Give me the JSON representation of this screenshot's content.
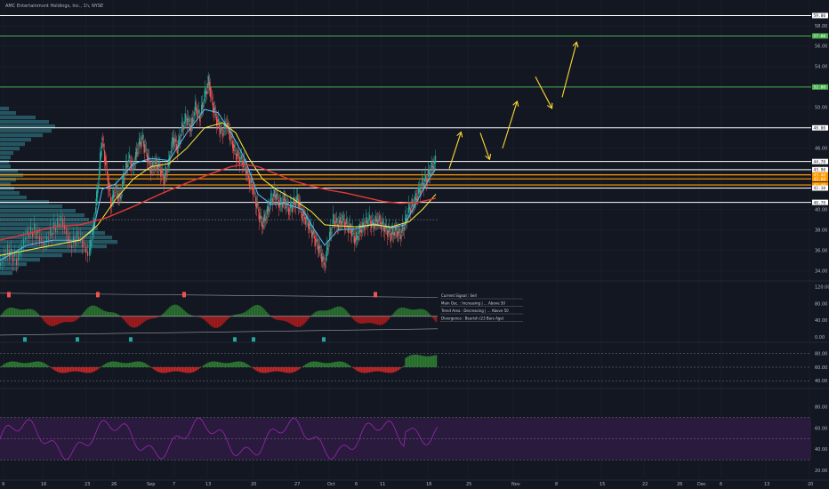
{
  "title": "AMC Entertainment Holdings, Inc., 1h, NYSE",
  "colors": {
    "background": "#131722",
    "grid": "#1e222d",
    "up_candle": "#26a69a",
    "down_candle": "#ef5350",
    "ema_fast": "#4fc3f7",
    "ema_mid": "#ffeb3b",
    "ema_slow": "#e53935",
    "level_white": "#ffffff",
    "level_green": "#4caf50",
    "level_orange": "#ff9800",
    "arrow": "#fdd835",
    "rsi_line": "#9c27b0",
    "rsi_band": "#2a1a3e",
    "volume_profile": "#2d6b78"
  },
  "price_axis": {
    "ticks": [
      "58.00",
      "56.00",
      "54.00",
      "52.00",
      "50.00",
      "48.00",
      "46.00",
      "44.00",
      "42.00",
      "40.00",
      "38.00",
      "36.00",
      "34.00"
    ],
    "level_labels": [
      {
        "text": "59.00",
        "price": 59.0,
        "color": "#ffffff"
      },
      {
        "text": "57.00",
        "price": 57.0,
        "color": "#4caf50"
      },
      {
        "text": "52.00",
        "price": 52.0,
        "color": "#4caf50"
      },
      {
        "text": "48.00",
        "price": 48.0,
        "color": "#ffffff"
      },
      {
        "text": "44.70",
        "price": 44.7,
        "color": "#ffffff"
      },
      {
        "text": "43.90",
        "price": 43.9,
        "color": "#ffffff"
      },
      {
        "text": "43.40",
        "price": 43.4,
        "color": "#ff9800"
      },
      {
        "text": "43.00",
        "price": 43.0,
        "color": "#ff9800"
      },
      {
        "text": "42.40",
        "price": 42.4,
        "color": "#ff9800"
      },
      {
        "text": "42.10",
        "price": 42.1,
        "color": "#ffffff"
      },
      {
        "text": "40.70",
        "price": 40.7,
        "color": "#ffffff"
      }
    ]
  },
  "x_axis": {
    "ticks": [
      "9",
      "16",
      "23",
      "26",
      "Sep",
      "7",
      "13",
      "20",
      "27",
      "Oct",
      "6",
      "11",
      "18",
      "25",
      "Nov",
      "8",
      "15",
      "22",
      "26",
      "Dec",
      "6",
      "13",
      "20"
    ]
  },
  "oscillator_axis": {
    "ticks": [
      "120.00",
      "80.00",
      "40.00",
      "0.00"
    ]
  },
  "momentum_axis": {
    "ticks": [
      "80.00",
      "60.00",
      "40.00"
    ]
  },
  "rsi_axis": {
    "ticks": [
      "80.00",
      "60.00",
      "40.00",
      "20.00"
    ]
  },
  "oscillator_legend": {
    "rows": [
      "Current Signal : Sell",
      "Main Osc. : Increasing | ... Above 50",
      "Trend Area : Decreasing | ... Above 50",
      "Divergence : Bearish (23 Bars Ago)"
    ]
  },
  "chart_data": {
    "type": "line",
    "title": "AMC Entertainment Holdings, Inc., 1h, NYSE",
    "xlabel": "",
    "ylabel": "",
    "ylim": [
      33,
      60
    ],
    "horizontal_levels": [
      59.0,
      57.0,
      52.0,
      48.0,
      44.7,
      43.9,
      43.4,
      43.0,
      42.4,
      42.1,
      40.7
    ],
    "dotted_level": 39.0,
    "series": [
      {
        "kind": "close",
        "points": [
          [
            0,
            34.5
          ],
          [
            10,
            36
          ],
          [
            20,
            35
          ],
          [
            30,
            37.5
          ],
          [
            40,
            38
          ],
          [
            50,
            36.5
          ],
          [
            60,
            38
          ],
          [
            70,
            39
          ],
          [
            80,
            36.5
          ],
          [
            90,
            37.5
          ],
          [
            100,
            35.5
          ],
          [
            105,
            38
          ],
          [
            110,
            42
          ],
          [
            115,
            47
          ],
          [
            120,
            44
          ],
          [
            125,
            40.5
          ],
          [
            130,
            42
          ],
          [
            135,
            41
          ],
          [
            140,
            43.5
          ],
          [
            145,
            45
          ],
          [
            150,
            44
          ],
          [
            155,
            46
          ],
          [
            160,
            47
          ],
          [
            165,
            45.5
          ],
          [
            170,
            44
          ],
          [
            175,
            44.5
          ],
          [
            180,
            44
          ],
          [
            185,
            43
          ],
          [
            190,
            44.5
          ],
          [
            195,
            47
          ],
          [
            200,
            46
          ],
          [
            205,
            48
          ],
          [
            210,
            49
          ],
          [
            215,
            48
          ],
          [
            220,
            50
          ],
          [
            225,
            49
          ],
          [
            230,
            51
          ],
          [
            235,
            52.5
          ],
          [
            240,
            50
          ],
          [
            245,
            48.5
          ],
          [
            250,
            47.5
          ],
          [
            255,
            48.5
          ],
          [
            260,
            47
          ],
          [
            265,
            45.5
          ],
          [
            270,
            45
          ],
          [
            275,
            44.5
          ],
          [
            280,
            43
          ],
          [
            285,
            42
          ],
          [
            290,
            40
          ],
          [
            295,
            38.5
          ],
          [
            300,
            39.5
          ],
          [
            305,
            41
          ],
          [
            310,
            41.5
          ],
          [
            315,
            40.5
          ],
          [
            320,
            41
          ],
          [
            325,
            40
          ],
          [
            330,
            40.5
          ],
          [
            335,
            41
          ],
          [
            340,
            39.5
          ],
          [
            345,
            39
          ],
          [
            350,
            38
          ],
          [
            355,
            37
          ],
          [
            360,
            36
          ],
          [
            365,
            34.5
          ],
          [
            370,
            37
          ],
          [
            375,
            39
          ],
          [
            380,
            38.5
          ],
          [
            385,
            39
          ],
          [
            390,
            38.5
          ],
          [
            395,
            38
          ],
          [
            400,
            37
          ],
          [
            405,
            38
          ],
          [
            410,
            38.5
          ],
          [
            415,
            39
          ],
          [
            420,
            38.5
          ],
          [
            425,
            39
          ],
          [
            430,
            38.5
          ],
          [
            435,
            38
          ],
          [
            440,
            37.5
          ],
          [
            445,
            38
          ],
          [
            450,
            37.5
          ],
          [
            455,
            38.5
          ],
          [
            460,
            40
          ],
          [
            465,
            40.5
          ],
          [
            470,
            41.5
          ],
          [
            475,
            42.5
          ],
          [
            480,
            43
          ],
          [
            485,
            44
          ],
          [
            490,
            44.7
          ]
        ]
      },
      {
        "kind": "ema_fast",
        "points": [
          [
            0,
            35
          ],
          [
            30,
            36.5
          ],
          [
            60,
            37
          ],
          [
            90,
            37
          ],
          [
            105,
            38
          ],
          [
            115,
            42
          ],
          [
            130,
            42.5
          ],
          [
            150,
            44.5
          ],
          [
            170,
            45
          ],
          [
            190,
            44.8
          ],
          [
            210,
            47.5
          ],
          [
            230,
            49.8
          ],
          [
            245,
            49.5
          ],
          [
            260,
            47.5
          ],
          [
            275,
            45
          ],
          [
            290,
            41.5
          ],
          [
            305,
            40.5
          ],
          [
            320,
            40.6
          ],
          [
            340,
            40
          ],
          [
            355,
            37.8
          ],
          [
            365,
            36.5
          ],
          [
            380,
            38
          ],
          [
            400,
            38.1
          ],
          [
            420,
            38.6
          ],
          [
            440,
            38.2
          ],
          [
            455,
            38.5
          ],
          [
            470,
            41
          ],
          [
            485,
            43.4
          ],
          [
            490,
            44
          ]
        ]
      },
      {
        "kind": "ema_mid",
        "points": [
          [
            0,
            35.5
          ],
          [
            30,
            36
          ],
          [
            60,
            36.5
          ],
          [
            90,
            37
          ],
          [
            110,
            38.5
          ],
          [
            130,
            41
          ],
          [
            150,
            43
          ],
          [
            170,
            44.2
          ],
          [
            190,
            44.5
          ],
          [
            210,
            46
          ],
          [
            230,
            48
          ],
          [
            250,
            48.5
          ],
          [
            265,
            47.5
          ],
          [
            280,
            45
          ],
          [
            295,
            43
          ],
          [
            310,
            42
          ],
          [
            330,
            41
          ],
          [
            350,
            39.8
          ],
          [
            365,
            38.5
          ],
          [
            380,
            38.4
          ],
          [
            400,
            38.3
          ],
          [
            420,
            38.5
          ],
          [
            440,
            38.3
          ],
          [
            460,
            38.8
          ],
          [
            475,
            40
          ],
          [
            490,
            41.5
          ]
        ]
      },
      {
        "kind": "ema_slow",
        "points": [
          [
            0,
            37
          ],
          [
            30,
            37.6
          ],
          [
            60,
            38.3
          ],
          [
            90,
            38.5
          ],
          [
            120,
            39.2
          ],
          [
            150,
            40.3
          ],
          [
            180,
            41.5
          ],
          [
            210,
            42.6
          ],
          [
            240,
            43.6
          ],
          [
            260,
            44.2
          ],
          [
            275,
            44.4
          ],
          [
            290,
            44.2
          ],
          [
            310,
            43.5
          ],
          [
            330,
            42.8
          ],
          [
            350,
            42.3
          ],
          [
            370,
            41.9
          ],
          [
            390,
            41.6
          ],
          [
            410,
            41.2
          ],
          [
            430,
            40.8
          ],
          [
            450,
            40.6
          ],
          [
            470,
            40.7
          ],
          [
            490,
            41.1
          ]
        ]
      }
    ],
    "projection_arrows": [
      [
        [
          505,
          44
        ],
        [
          518,
          47.5
        ]
      ],
      [
        [
          540,
          47.5
        ],
        [
          550,
          45
        ]
      ],
      [
        [
          565,
          46
        ],
        [
          581,
          50.5
        ]
      ],
      [
        [
          602,
          53
        ],
        [
          620,
          50
        ]
      ],
      [
        [
          632,
          51
        ],
        [
          648,
          56.3
        ]
      ]
    ]
  }
}
